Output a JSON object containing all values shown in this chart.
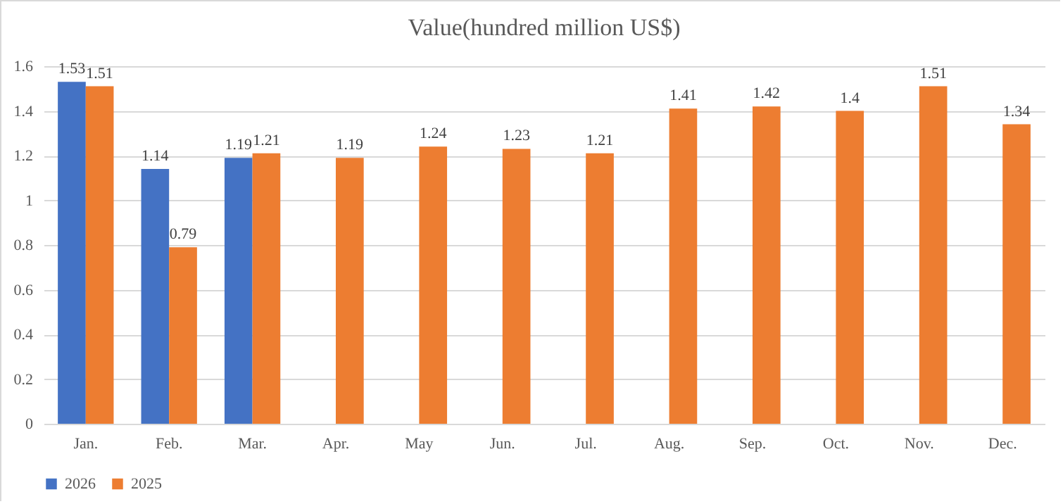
{
  "chart_data": {
    "type": "bar",
    "title": "Value(hundred million US$)",
    "categories": [
      "Jan.",
      "Feb.",
      "Mar.",
      "Apr.",
      "May",
      "Jun.",
      "Jul.",
      "Aug.",
      "Sep.",
      "Oct.",
      "Nov.",
      "Dec."
    ],
    "series": [
      {
        "name": "2026",
        "color": "#4472c4",
        "values": [
          1.53,
          1.14,
          1.19,
          null,
          null,
          null,
          null,
          null,
          null,
          null,
          null,
          null
        ]
      },
      {
        "name": "2025",
        "color": "#ed7d31",
        "values": [
          1.51,
          0.79,
          1.21,
          1.19,
          1.24,
          1.23,
          1.21,
          1.41,
          1.42,
          1.4,
          1.51,
          1.34
        ]
      }
    ],
    "ylim": [
      0,
      1.6
    ],
    "yticks": [
      0,
      0.2,
      0.4,
      0.6,
      0.8,
      1,
      1.2,
      1.4,
      1.6
    ],
    "grid": "y",
    "legend": "bottom",
    "data_labels": true
  }
}
